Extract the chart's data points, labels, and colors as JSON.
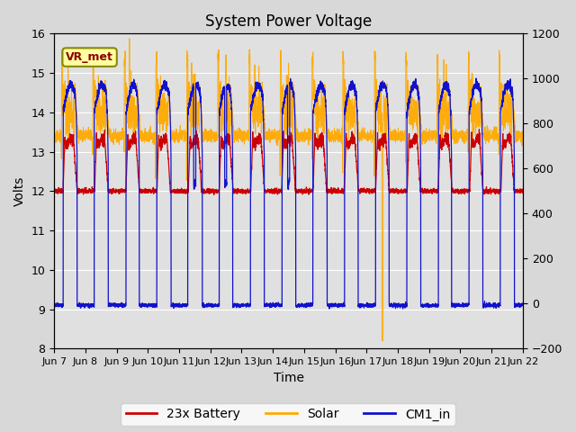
{
  "title": "System Power Voltage",
  "xlabel": "Time",
  "ylabel": "Volts",
  "ylim_left": [
    8.0,
    16.0
  ],
  "ylim_right": [
    -200,
    1200
  ],
  "yticks_left": [
    8.0,
    9.0,
    10.0,
    11.0,
    12.0,
    13.0,
    14.0,
    15.0,
    16.0
  ],
  "yticks_right": [
    -200,
    0,
    200,
    400,
    600,
    800,
    1000,
    1200
  ],
  "n_days": 15,
  "xtick_labels": [
    "Jun 7",
    "Jun 8",
    "Jun 9",
    "Jun 10",
    "Jun 11",
    "Jun 12",
    "Jun 13",
    "Jun 14",
    "Jun 15",
    "Jun 16",
    "Jun 17",
    "Jun 18",
    "Jun 19",
    "Jun 20",
    "Jun 21",
    "Jun 22"
  ],
  "color_battery": "#cc0000",
  "color_solar": "#ffaa00",
  "color_cm1": "#1111cc",
  "legend_labels": [
    "23x Battery",
    "Solar",
    "CM1_in"
  ],
  "annotation_label": "VR_met",
  "bg_color": "#e0e0e0",
  "title_fontsize": 12,
  "label_fontsize": 10,
  "tick_fontsize": 9,
  "day_start": 0.29,
  "day_end": 0.73,
  "cm1_night": 9.1,
  "cm1_day_peak": 15.0,
  "solar_night": 13.5,
  "solar_day_peak": 15.3,
  "battery_night": 12.0,
  "battery_day_peak": 13.4,
  "solar_spike_day": 10,
  "solar_spike_val": 8.2
}
